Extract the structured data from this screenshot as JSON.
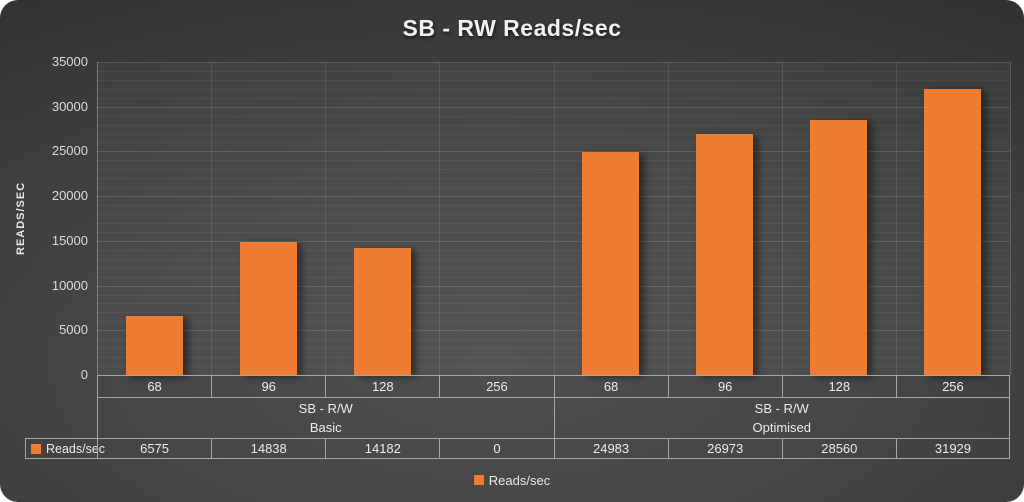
{
  "chart_data": {
    "type": "bar",
    "title": "SB - RW Reads/sec",
    "ylabel": "READS/SEC",
    "xlabel": "",
    "ylim": [
      0,
      35000
    ],
    "yticks": [
      0,
      5000,
      10000,
      15000,
      20000,
      25000,
      30000,
      35000
    ],
    "minor_tick_step": 1000,
    "grid": true,
    "legend_position": "bottom",
    "categories": [
      "68",
      "96",
      "128",
      "256",
      "68",
      "96",
      "128",
      "256"
    ],
    "groups": [
      {
        "label": "SB - R/W",
        "sublabel": "Basic",
        "span": 4
      },
      {
        "label": "SB - R/W",
        "sublabel": "Optimised",
        "span": 4
      }
    ],
    "series": [
      {
        "name": "Reads/sec",
        "color": "#ED7D31",
        "values": [
          6575,
          14838,
          14182,
          0,
          24983,
          26973,
          28560,
          31929
        ]
      }
    ],
    "data_table": {
      "row_header": "Reads/sec",
      "values": [
        "6575",
        "14838",
        "14182",
        "0",
        "24983",
        "26973",
        "28560",
        "31929"
      ]
    }
  },
  "legend": {
    "label": "Reads/sec",
    "swatch_color": "#ED7D31"
  },
  "colors": {
    "accent": "#ED7D31",
    "title_text": "#F2F2F2",
    "axis_text": "#DCDCDC",
    "table_border": "#A6A6A6"
  }
}
